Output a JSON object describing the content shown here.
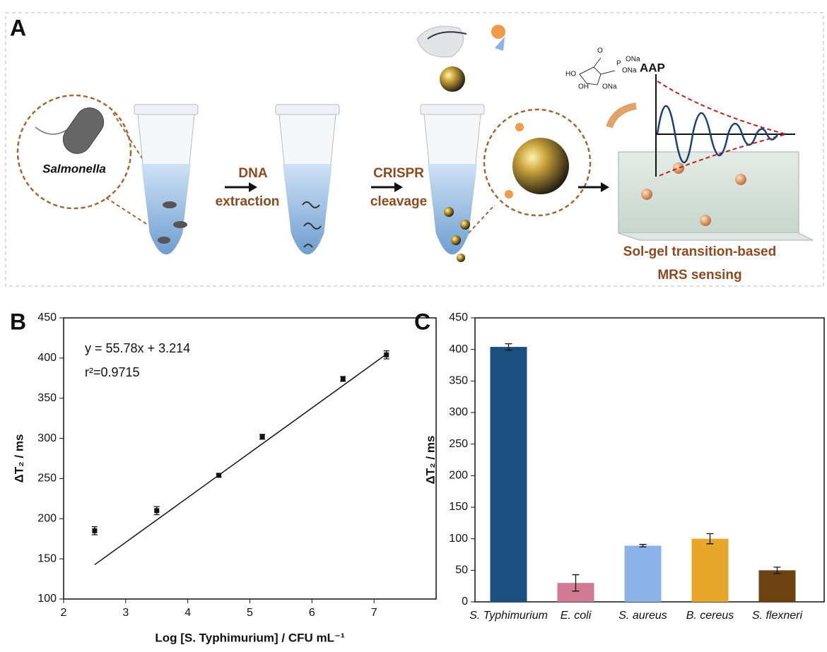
{
  "panel_a": {
    "letter": "A",
    "organism": "Salmonella",
    "step1": [
      "DNA",
      "extraction"
    ],
    "step2": [
      "CRISPR",
      "cleavage"
    ],
    "reagent": "AAP",
    "chem_labels": [
      "HO",
      "OH",
      "ONa",
      "O",
      "P",
      "ONa",
      "ONa"
    ],
    "readout": [
      "Sol-gel transition-based",
      "MRS sensing"
    ]
  },
  "chart_data": [
    {
      "type": "scatter",
      "letter": "B",
      "annotation": [
        "y = 55.78x + 3.214",
        "r²=0.9715"
      ],
      "xlabel": "Log [S. Typhimurium] / CFU mL⁻¹",
      "ylabel": "ΔT₂ / ms",
      "x": [
        2.5,
        3.5,
        4.5,
        5.2,
        6.5,
        7.2
      ],
      "values": [
        185,
        210,
        254,
        302,
        374,
        404
      ],
      "errors": [
        5,
        5,
        2,
        3,
        3,
        5
      ],
      "color": "#111111",
      "fit_line": {
        "x": [
          2.5,
          7.2
        ],
        "y": [
          142.7,
          404.8
        ],
        "color": "#111111"
      },
      "xlim": [
        2,
        8
      ],
      "xticks": [
        2,
        3,
        4,
        5,
        6,
        7
      ],
      "ylim": [
        100,
        450
      ],
      "yticks": [
        100,
        150,
        200,
        250,
        300,
        350,
        400,
        450
      ]
    },
    {
      "type": "bar",
      "letter": "C",
      "ylabel": "ΔT₂ / ms",
      "categories": [
        "S. Typhimurium",
        "E. coli",
        "S. aureus",
        "B. cereus",
        "S. flexneri"
      ],
      "values": [
        404,
        30,
        89,
        100,
        50
      ],
      "errors": [
        5,
        13,
        2,
        8,
        5
      ],
      "colors": [
        "#1c4f80",
        "#d07a96",
        "#8cb3e8",
        "#e6a72a",
        "#6b4210"
      ],
      "ylim": [
        0,
        450
      ],
      "yticks": [
        0,
        50,
        100,
        150,
        200,
        250,
        300,
        350,
        400,
        450
      ]
    }
  ]
}
